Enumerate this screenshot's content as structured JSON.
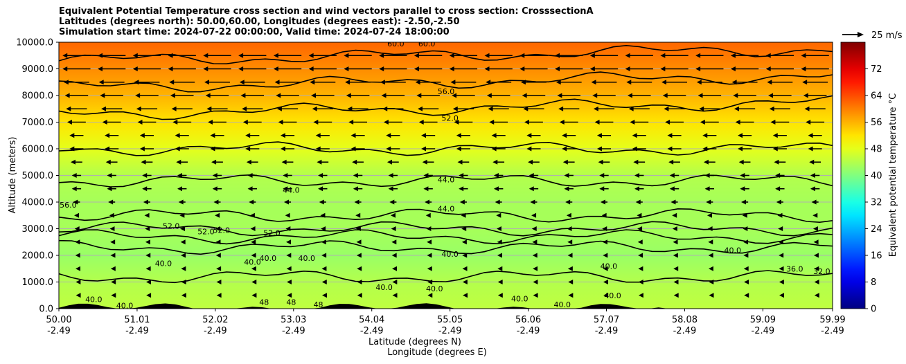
{
  "title_lines": [
    "Equivalent Potential Temperature cross section and wind vectors parallel to cross section: CrosssectionA",
    "Latitudes (degrees north): 50.00,60.00, Longitudes (degrees east): -2.50,-2.50",
    "Simulation start time: 2024-07-22 00:00:00, Valid time: 2024-07-24 18:00:00"
  ],
  "chart_data": {
    "type": "heatmap",
    "title": "Equivalent Potential Temperature cross section and wind vectors parallel to cross section: CrosssectionA",
    "ylabel": "Altitude (meters)",
    "xlabel_lines": [
      "Latitude (degrees N)",
      "Longitude (degrees E)"
    ],
    "ylim": [
      0,
      10000
    ],
    "xlim": [
      50.0,
      59.99
    ],
    "y_ticks": [
      0,
      1000,
      2000,
      3000,
      4000,
      5000,
      6000,
      7000,
      8000,
      9000,
      10000
    ],
    "y_tick_labels": [
      "0.0",
      "1000.0",
      "2000.0",
      "3000.0",
      "4000.0",
      "5000.0",
      "6000.0",
      "7000.0",
      "8000.0",
      "9000.0",
      "10000.0"
    ],
    "x_ticks": [
      {
        "lat": 50.0,
        "lat_label": "50.00",
        "lon_label": "-2.49"
      },
      {
        "lat": 51.01,
        "lat_label": "51.01",
        "lon_label": "-2.49"
      },
      {
        "lat": 52.02,
        "lat_label": "52.02",
        "lon_label": "-2.49"
      },
      {
        "lat": 53.03,
        "lat_label": "53.03",
        "lon_label": "-2.49"
      },
      {
        "lat": 54.04,
        "lat_label": "54.04",
        "lon_label": "-2.49"
      },
      {
        "lat": 55.05,
        "lat_label": "55.05",
        "lon_label": "-2.49"
      },
      {
        "lat": 56.06,
        "lat_label": "56.06",
        "lon_label": "-2.49"
      },
      {
        "lat": 57.07,
        "lat_label": "57.07",
        "lon_label": "-2.49"
      },
      {
        "lat": 58.08,
        "lat_label": "58.08",
        "lon_label": "-2.49"
      },
      {
        "lat": 59.09,
        "lat_label": "59.09",
        "lon_label": "-2.49"
      },
      {
        "lat": 59.99,
        "lat_label": "59.99",
        "lon_label": "-2.49"
      }
    ],
    "grid": "horizontal",
    "colorbar": {
      "label": "Equivalent potential temperature $^\\circ$C",
      "label_display": "Equivalent potential temperature °C",
      "min": 0,
      "max": 80,
      "ticks": [
        0,
        8,
        16,
        24,
        32,
        40,
        48,
        56,
        64,
        72
      ],
      "colormap": "jet"
    },
    "field_profile": [
      {
        "alt": 0,
        "value": 45
      },
      {
        "alt": 1000,
        "value": 44
      },
      {
        "alt": 2000,
        "value": 42
      },
      {
        "alt": 3000,
        "value": 43
      },
      {
        "alt": 4000,
        "value": 43
      },
      {
        "alt": 5000,
        "value": 44
      },
      {
        "alt": 6000,
        "value": 48
      },
      {
        "alt": 7000,
        "value": 52
      },
      {
        "alt": 8000,
        "value": 56
      },
      {
        "alt": 9000,
        "value": 59
      },
      {
        "alt": 10000,
        "value": 62
      }
    ],
    "contour_labels": [
      {
        "text": "60.0",
        "lat": 54.35,
        "alt": 9950
      },
      {
        "text": "60.0",
        "lat": 54.75,
        "alt": 9950
      },
      {
        "text": "56.0",
        "lat": 55.0,
        "alt": 8150
      },
      {
        "text": "52.0",
        "lat": 55.05,
        "alt": 7150
      },
      {
        "text": "56.0",
        "lat": 50.12,
        "alt": 3900
      },
      {
        "text": "44.0",
        "lat": 53.0,
        "alt": 4450
      },
      {
        "text": "44.0",
        "lat": 55.0,
        "alt": 4850
      },
      {
        "text": "44.0",
        "lat": 55.0,
        "alt": 3750
      },
      {
        "text": "52.0",
        "lat": 51.45,
        "alt": 3100
      },
      {
        "text": "52.0",
        "lat": 51.9,
        "alt": 2900
      },
      {
        "text": "52.0",
        "lat": 52.1,
        "alt": 2950
      },
      {
        "text": "52.0",
        "lat": 52.75,
        "alt": 2850
      },
      {
        "text": "40.0",
        "lat": 55.05,
        "alt": 2050
      },
      {
        "text": "40.0",
        "lat": 51.35,
        "alt": 1700
      },
      {
        "text": "40.0",
        "lat": 52.5,
        "alt": 1750
      },
      {
        "text": "40.0",
        "lat": 52.7,
        "alt": 1900
      },
      {
        "text": "40.0",
        "lat": 53.2,
        "alt": 1900
      },
      {
        "text": "40.0",
        "lat": 54.2,
        "alt": 800
      },
      {
        "text": "40.0",
        "lat": 54.85,
        "alt": 750
      },
      {
        "text": "40.0",
        "lat": 57.1,
        "alt": 1600
      },
      {
        "text": "40.0",
        "lat": 58.7,
        "alt": 2200
      },
      {
        "text": "36.0",
        "lat": 59.5,
        "alt": 1500
      },
      {
        "text": "32.0",
        "lat": 59.85,
        "alt": 1400
      },
      {
        "text": "40.0",
        "lat": 50.45,
        "alt": 350
      },
      {
        "text": "40.0",
        "lat": 50.85,
        "alt": 120
      },
      {
        "text": "48",
        "lat": 52.65,
        "alt": 250
      },
      {
        "text": "48",
        "lat": 53.0,
        "alt": 250
      },
      {
        "text": "48",
        "lat": 53.35,
        "alt": 150
      },
      {
        "text": "40.0",
        "lat": 55.95,
        "alt": 380
      },
      {
        "text": "40.0",
        "lat": 56.5,
        "alt": 150
      },
      {
        "text": "40.0",
        "lat": 57.15,
        "alt": 500
      }
    ],
    "wind_key": {
      "label": "25 m/s",
      "speed": 25
    },
    "wind_levels": [
      {
        "alt": 9500,
        "u": -12
      },
      {
        "alt": 9000,
        "u": -12
      },
      {
        "alt": 8500,
        "u": -11
      },
      {
        "alt": 8000,
        "u": -10
      },
      {
        "alt": 7500,
        "u": -9
      },
      {
        "alt": 7000,
        "u": -8
      },
      {
        "alt": 6500,
        "u": -6
      },
      {
        "alt": 6000,
        "u": -6
      },
      {
        "alt": 5500,
        "u": -5
      },
      {
        "alt": 5000,
        "u": -4
      },
      {
        "alt": 4500,
        "u": -4
      },
      {
        "alt": 4000,
        "u": -3
      },
      {
        "alt": 3500,
        "u": -2
      },
      {
        "alt": 3000,
        "u": -1.6
      },
      {
        "alt": 2500,
        "u": -1.2
      },
      {
        "alt": 2000,
        "u": -1
      },
      {
        "alt": 1500,
        "u": -0.8
      },
      {
        "alt": 1000,
        "u": -0.6
      },
      {
        "alt": 500,
        "u": -0.5
      }
    ]
  }
}
